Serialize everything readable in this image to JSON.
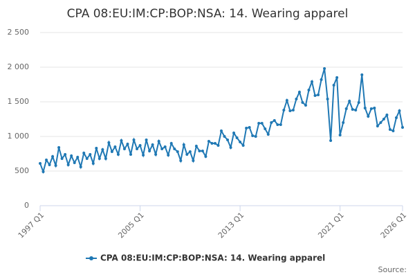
{
  "chart_data": {
    "type": "line",
    "title": "CPA 08:EU:IM:CP:BOP:NSA: 14. Wearing apparel",
    "categories": [
      "1997 Q1",
      null,
      null,
      null,
      null,
      null,
      null,
      null,
      null,
      null,
      null,
      null,
      null,
      null,
      null,
      null,
      null,
      null,
      null,
      null,
      null,
      null,
      null,
      null,
      null,
      null,
      null,
      null,
      null,
      null,
      null,
      null,
      "2005 Q1",
      null,
      null,
      null,
      null,
      null,
      null,
      null,
      null,
      null,
      null,
      null,
      null,
      null,
      null,
      null,
      null,
      null,
      null,
      null,
      null,
      null,
      null,
      null,
      null,
      null,
      null,
      null,
      null,
      null,
      null,
      null,
      "2013 Q1",
      null,
      null,
      null,
      null,
      null,
      null,
      null,
      null,
      null,
      null,
      null,
      null,
      null,
      null,
      null,
      null,
      null,
      null,
      null,
      null,
      null,
      null,
      null,
      null,
      null,
      null,
      null,
      null,
      null,
      null,
      null,
      "2021 Q1",
      null,
      null,
      null,
      null,
      null,
      null,
      null,
      null,
      null,
      null,
      null,
      null,
      null,
      null,
      null,
      null,
      null,
      null,
      null,
      "2026 Q1"
    ],
    "series": [
      {
        "name": "CPA 08:EU:IM:CP:BOP:NSA: 14. Wearing apparel",
        "color": "#1f78b4",
        "values": [
          610,
          490,
          660,
          590,
          710,
          580,
          840,
          680,
          740,
          590,
          720,
          620,
          700,
          560,
          760,
          680,
          740,
          610,
          830,
          680,
          810,
          680,
          910,
          780,
          850,
          740,
          940,
          820,
          890,
          740,
          950,
          820,
          870,
          730,
          950,
          790,
          880,
          740,
          930,
          820,
          850,
          730,
          900,
          820,
          780,
          650,
          880,
          740,
          780,
          650,
          860,
          790,
          790,
          710,
          930,
          900,
          900,
          870,
          1080,
          1000,
          950,
          840,
          1050,
          980,
          920,
          870,
          1120,
          1130,
          1010,
          1000,
          1190,
          1190,
          1110,
          1030,
          1200,
          1230,
          1170,
          1170,
          1380,
          1520,
          1370,
          1380,
          1540,
          1640,
          1490,
          1450,
          1670,
          1790,
          1590,
          1600,
          1820,
          1980,
          1540,
          940,
          1740,
          1850,
          1020,
          1200,
          1400,
          1510,
          1390,
          1380,
          1490,
          1890,
          1410,
          1290,
          1400,
          1410,
          1150,
          1200,
          1250,
          1310,
          1100,
          1080,
          1270,
          1370,
          1130
        ]
      }
    ],
    "ylim": [
      0,
      2500
    ],
    "yticks": [
      0,
      500,
      {
        "value": 1000,
        "label": "1 000"
      },
      {
        "value": 1500,
        "label": "1 500"
      },
      {
        "value": 2000,
        "label": "2 000"
      },
      {
        "value": 2500,
        "label": "2 500"
      }
    ],
    "grid": true,
    "legend": "bottom",
    "source": "Source:"
  }
}
